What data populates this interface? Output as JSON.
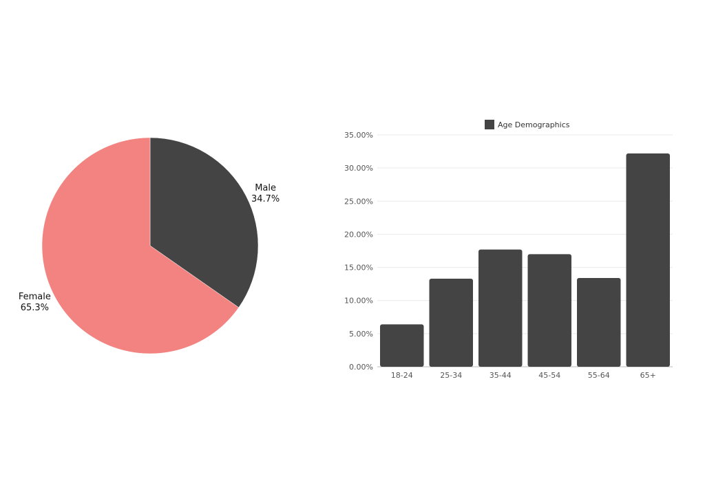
{
  "chart_data": [
    {
      "type": "pie",
      "title": "",
      "categories": [
        "Male",
        "Female"
      ],
      "values": [
        34.7,
        65.3
      ],
      "value_labels": [
        "34.7%",
        "65.3%"
      ],
      "colors": [
        "#444444",
        "#f28380"
      ],
      "start_angle_deg": 0,
      "direction": "clockwise"
    },
    {
      "type": "bar",
      "title": "",
      "categories": [
        "18-24",
        "25-34",
        "35-44",
        "45-54",
        "55-64",
        "65+"
      ],
      "series": [
        {
          "name": "Age Demographics",
          "values": [
            6.4,
            13.3,
            17.7,
            17.0,
            13.4,
            32.2
          ],
          "color": "#444444"
        }
      ],
      "ylim": [
        0,
        35
      ],
      "yticks": [
        0,
        5,
        10,
        15,
        20,
        25,
        30,
        35
      ],
      "ytick_labels": [
        "0.00%",
        "5.00%",
        "10.00%",
        "15.00%",
        "20.00%",
        "25.00%",
        "30.00%",
        "35.00%"
      ],
      "grid": true,
      "legend": "top-center",
      "xlabel": "",
      "ylabel": ""
    }
  ]
}
